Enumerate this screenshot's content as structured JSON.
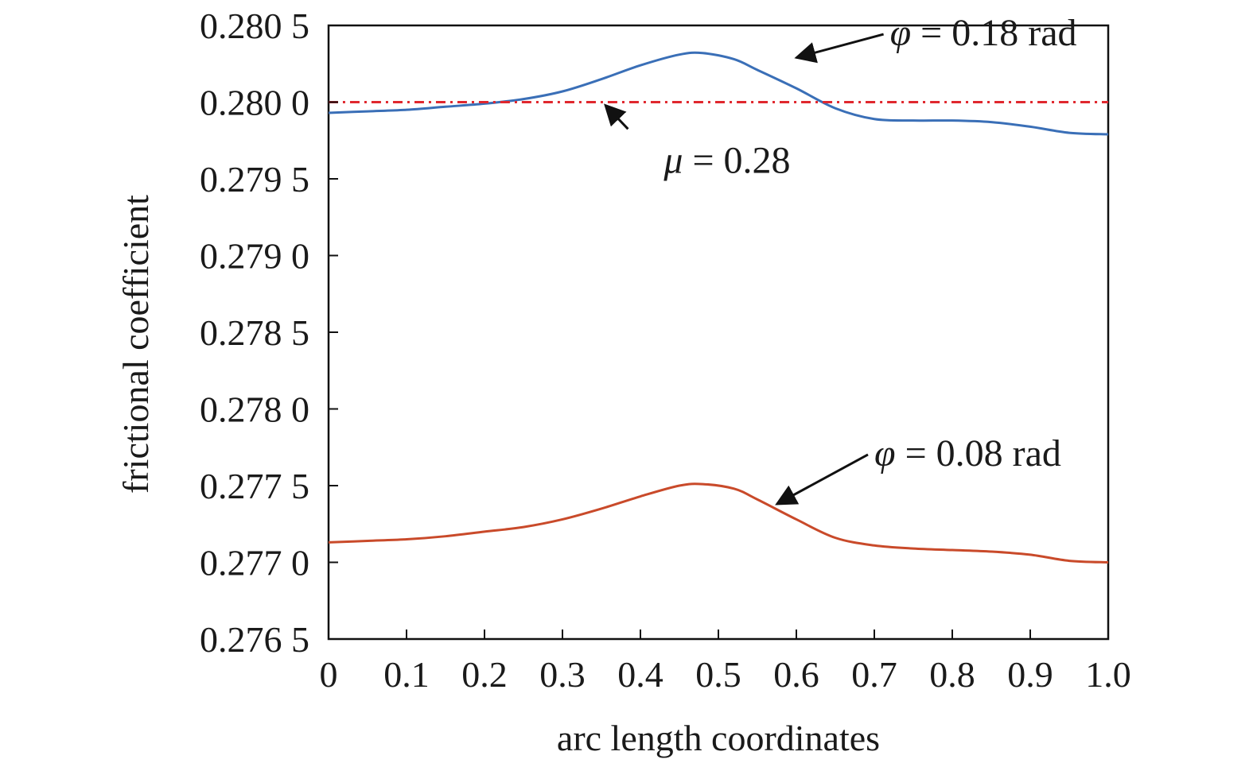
{
  "chart_data": {
    "type": "line",
    "xlabel": "arc length coordinates",
    "ylabel": "frictional coefficient",
    "xlim": [
      0,
      1.0
    ],
    "ylim": [
      0.2765,
      0.2805
    ],
    "x_ticks": [
      0,
      0.1,
      0.2,
      0.3,
      0.4,
      0.5,
      0.6,
      0.7,
      0.8,
      0.9,
      1.0
    ],
    "x_tick_labels": [
      "0",
      "0.1",
      "0.2",
      "0.3",
      "0.4",
      "0.5",
      "0.6",
      "0.7",
      "0.8",
      "0.9",
      "1.0"
    ],
    "y_ticks": [
      0.2765,
      0.277,
      0.2775,
      0.278,
      0.2785,
      0.279,
      0.2795,
      0.28,
      0.2805
    ],
    "y_tick_labels": [
      "0.276 5",
      "0.277 0",
      "0.277 5",
      "0.278 0",
      "0.278 5",
      "0.279 0",
      "0.279 5",
      "0.280 0",
      "0.280 5"
    ],
    "grid": false,
    "series": [
      {
        "name": "φ = 0.18 rad",
        "color": "#3a6fb7",
        "style": "solid",
        "x": [
          0,
          0.05,
          0.1,
          0.15,
          0.2,
          0.25,
          0.3,
          0.35,
          0.4,
          0.45,
          0.48,
          0.52,
          0.55,
          0.6,
          0.65,
          0.7,
          0.75,
          0.8,
          0.85,
          0.9,
          0.95,
          1.0
        ],
        "y": [
          0.27993,
          0.27994,
          0.27995,
          0.27997,
          0.27999,
          0.28002,
          0.28007,
          0.28015,
          0.28024,
          0.28031,
          0.28032,
          0.28028,
          0.28021,
          0.28009,
          0.27996,
          0.27989,
          0.27988,
          0.27988,
          0.27987,
          0.27984,
          0.2798,
          0.27979
        ]
      },
      {
        "name": "φ = 0.08 rad",
        "color": "#c94a2a",
        "style": "solid",
        "x": [
          0,
          0.05,
          0.1,
          0.15,
          0.2,
          0.25,
          0.3,
          0.35,
          0.4,
          0.45,
          0.48,
          0.52,
          0.55,
          0.6,
          0.65,
          0.7,
          0.75,
          0.8,
          0.85,
          0.9,
          0.95,
          1.0
        ],
        "y": [
          0.27713,
          0.27714,
          0.27715,
          0.27717,
          0.2772,
          0.27723,
          0.27728,
          0.27735,
          0.27743,
          0.2775,
          0.27751,
          0.27748,
          0.27741,
          0.27728,
          0.27716,
          0.27711,
          0.27709,
          0.27708,
          0.27707,
          0.27705,
          0.27701,
          0.277
        ]
      },
      {
        "name": "μ = 0.28",
        "color": "#e0282e",
        "style": "dash-dot",
        "x": [
          0,
          1.0
        ],
        "y": [
          0.28,
          0.28
        ]
      }
    ],
    "annotations": [
      {
        "symbol": "φ",
        "text": " = 0.18 rad",
        "text_x": 0.72,
        "text_y": 0.28037,
        "arrow_to_x": 0.6,
        "arrow_to_y": 0.28029
      },
      {
        "symbol": "μ",
        "text": " = 0.28",
        "text_x": 0.43,
        "text_y": 0.27954,
        "arrow_to_x": 0.355,
        "arrow_to_y": 0.27998
      },
      {
        "symbol": "φ",
        "text": " = 0.08 rad",
        "text_x": 0.7,
        "text_y": 0.27763,
        "arrow_to_x": 0.575,
        "arrow_to_y": 0.27738
      }
    ]
  }
}
